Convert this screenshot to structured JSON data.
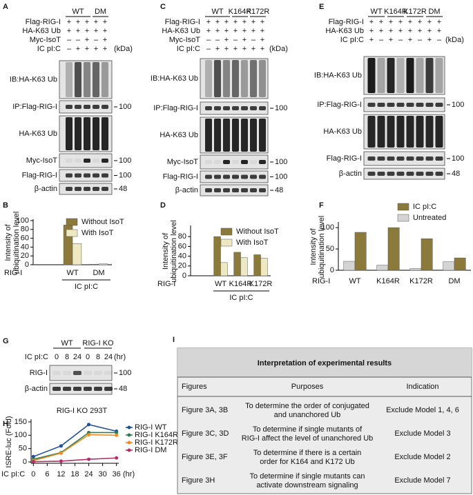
{
  "panel_A": {
    "label": "A",
    "groups": [
      "WT",
      "DM"
    ],
    "unit": "(kDa)",
    "conditions": [
      {
        "name": "Flag-RIG-I",
        "signs": [
          "+",
          "+",
          "+",
          "+",
          "+"
        ]
      },
      {
        "name": "HA-K63 Ub",
        "signs": [
          "+",
          "+",
          "+",
          "+",
          "+"
        ]
      },
      {
        "name": "Myc-IsoT",
        "signs": [
          "–",
          "–",
          "+",
          "–",
          "+"
        ]
      },
      {
        "name": "IC pI:C",
        "signs": [
          "–",
          "+",
          "+",
          "+",
          "+"
        ]
      }
    ],
    "blots": [
      {
        "name": "IB:HA-K63 Ub"
      },
      {
        "name": "IP:Flag-RIG-I",
        "marker": 100
      },
      {
        "name": "HA-K63 Ub"
      },
      {
        "name": "Myc-IsoT",
        "marker": 100
      },
      {
        "name": "Flag-RIG-I",
        "marker": 100
      },
      {
        "name": "β-actin",
        "marker": 48
      }
    ]
  },
  "panel_C": {
    "label": "C",
    "groups": [
      "WT",
      "K164R",
      "K172R"
    ],
    "unit": "(kDa)",
    "conditions": [
      {
        "name": "Flag-RIG-I",
        "signs": [
          "+",
          "+",
          "+",
          "+",
          "+",
          "+",
          "+"
        ]
      },
      {
        "name": "HA-K63 Ub",
        "signs": [
          "+",
          "+",
          "+",
          "+",
          "+",
          "+",
          "+"
        ]
      },
      {
        "name": "Myc-IsoT",
        "signs": [
          "–",
          "–",
          "+",
          "–",
          "+",
          "–",
          "+"
        ]
      },
      {
        "name": "IC pI:C",
        "signs": [
          "–",
          "+",
          "+",
          "+",
          "+",
          "+",
          "+"
        ]
      }
    ],
    "blots": [
      {
        "name": "IB:HA-K63 Ub"
      },
      {
        "name": "IP:Flag-RIG-I",
        "marker": 100
      },
      {
        "name": "HA-K63 Ub"
      },
      {
        "name": "Myc-IsoT",
        "marker": 100
      },
      {
        "name": "Flag-RIG-I",
        "marker": 100
      },
      {
        "name": "β-actin",
        "marker": 48
      }
    ]
  },
  "panel_E": {
    "label": "E",
    "groups": [
      "WT",
      "K164R",
      "K172R",
      "DM"
    ],
    "unit": "(kDa)",
    "conditions": [
      {
        "name": "Flag-RIG-I",
        "signs": [
          "+",
          "+",
          "+",
          "+",
          "+",
          "+",
          "+",
          "+"
        ]
      },
      {
        "name": "HA-K63 Ub",
        "signs": [
          "+",
          "+",
          "+",
          "+",
          "+",
          "+",
          "+",
          "+"
        ]
      },
      {
        "name": "IC pI:C",
        "signs": [
          "+",
          "–",
          "+",
          "–",
          "+",
          "–",
          "+",
          "–"
        ]
      }
    ],
    "blots": [
      {
        "name": "IB:HA-K63 Ub"
      },
      {
        "name": "IP:Flag-RIG-I",
        "marker": 100
      },
      {
        "name": "HA-K63 Ub"
      },
      {
        "name": "Flag-RIG-I",
        "marker": 100
      },
      {
        "name": "β-actin",
        "marker": 48
      }
    ]
  },
  "panel_G": {
    "label": "G",
    "groups": [
      "WT",
      "RIG-I KO"
    ],
    "unit": "(hr)",
    "conditions": [
      {
        "name": "IC pI:C",
        "signs": [
          "0",
          "8",
          "24",
          "0",
          "8",
          "24"
        ]
      }
    ],
    "blots": [
      {
        "name": "RIG-I",
        "marker": 100
      },
      {
        "name": "β-actin",
        "marker": 48
      }
    ]
  },
  "chart_data": [
    {
      "type": "bar",
      "label": "B",
      "ylabel": [
        "Intensity of",
        "ubiquitination level"
      ],
      "row_label": "RIG-I",
      "categories": [
        null,
        "WT",
        "DM"
      ],
      "group_label": "IC pI:C",
      "series": [
        {
          "name": "Without IsoT",
          "color": "#8c7a3a",
          "values": [
            0,
            90,
            1
          ]
        },
        {
          "name": "With IsoT",
          "color": "#efe9c3",
          "values": [
            0,
            48,
            2
          ]
        }
      ],
      "ylim": [
        0,
        100
      ],
      "yticks": [
        0,
        20,
        40,
        60,
        80,
        100
      ]
    },
    {
      "type": "bar",
      "label": "D",
      "ylabel": [
        "Intensity of",
        "ubiquitination level"
      ],
      "row_label": "RIG-I",
      "categories": [
        null,
        "WT",
        "K164R",
        "K172R"
      ],
      "group_label": "IC pI:C",
      "series": [
        {
          "name": "Without IsoT",
          "color": "#8c7a3a",
          "values": [
            0,
            80,
            48,
            43
          ]
        },
        {
          "name": "With IsoT",
          "color": "#efe9c3",
          "values": [
            0,
            27,
            37,
            36
          ]
        }
      ],
      "ylim": [
        0,
        100
      ],
      "yticks": [
        0,
        20,
        40,
        60,
        80
      ]
    },
    {
      "type": "bar",
      "label": "F",
      "ylabel": [
        "Intensity of",
        "ubiquitination level"
      ],
      "row_label": "RIG-I",
      "categories": [
        "WT",
        "K164R",
        "K172R",
        "DM"
      ],
      "series": [
        {
          "name": "Untreated",
          "color": "#d4d4d4",
          "values": [
            21,
            12,
            4,
            20
          ]
        },
        {
          "name": "IC pI:C",
          "color": "#8c7a3a",
          "values": [
            89,
            100,
            74,
            29
          ]
        }
      ],
      "legend_order": [
        1,
        0
      ],
      "ylim": [
        0,
        110
      ],
      "yticks": [
        0,
        50,
        100
      ]
    },
    {
      "type": "line",
      "label": "H",
      "title": "RIG-I KO 293T",
      "ylabel": "ISRE-luc (Fold)",
      "row_label": "IC pI:C",
      "xlabel": "(hr)",
      "x": [
        0,
        12,
        24,
        36
      ],
      "series": [
        {
          "name": "RIG-I WT",
          "color": "#1f4e9a",
          "values": [
            20,
            60,
            140,
            115
          ]
        },
        {
          "name": "RIG-I K164R",
          "color": "#2e7d4f",
          "values": [
            10,
            35,
            110,
            110
          ]
        },
        {
          "name": "RIG-I K172R",
          "color": "#f08a24",
          "values": [
            5,
            33,
            102,
            100
          ]
        },
        {
          "name": "RIG-I DM",
          "color": "#b0306a",
          "values": [
            1,
            3,
            10,
            15
          ]
        }
      ],
      "xlim": [
        -1,
        37
      ],
      "xticks": [
        0,
        6,
        12,
        18,
        24,
        30,
        36
      ],
      "ylim": [
        -5,
        155
      ],
      "yticks": [
        0,
        50,
        100,
        150
      ]
    }
  ],
  "table": {
    "label": "I",
    "title": "Interpretation of experimental results",
    "columns": [
      "Figures",
      "Purposes",
      "Indication"
    ],
    "rows": [
      [
        "Figure 3A, 3B",
        [
          "To determine the order of conjugated",
          "and unanchored Ub"
        ],
        "Exclude Model 1, 4, 6"
      ],
      [
        "Figure 3C, 3D",
        [
          "To determine if single mutants of",
          "RIG-I affect the level of unanchored Ub"
        ],
        "Exclude Model 3"
      ],
      [
        "Figure 3E, 3F",
        [
          "To determine if there is a certain",
          "order for K164 and K172 Ub"
        ],
        "Exclude Model 2"
      ],
      [
        "Figure 3H",
        [
          "To determine if single mutants can",
          "activate downstream signaling"
        ],
        "Exclude Model 7"
      ]
    ]
  }
}
